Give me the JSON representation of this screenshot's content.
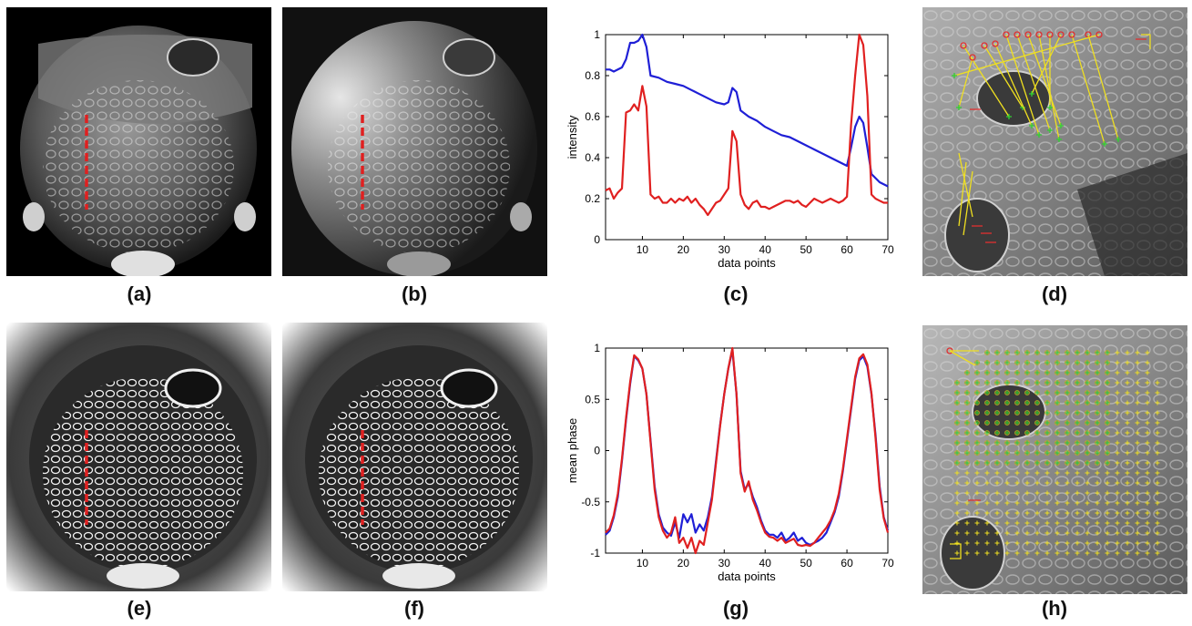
{
  "captions": {
    "a": "(a)",
    "b": "(b)",
    "c": "(c)",
    "d": "(d)",
    "e": "(e)",
    "f": "(f)",
    "g": "(g)",
    "h": "(h)"
  },
  "colors": {
    "series_blue": "#1f1fd6",
    "series_red": "#e02020",
    "marker_yellow": "#f0e020",
    "marker_green": "#30d030",
    "marker_red": "#e03030",
    "dashed_line": "#e02020"
  },
  "chart_data": [
    {
      "id": "c",
      "type": "line",
      "xlabel": "data points",
      "ylabel": "intensity",
      "xlim": [
        1,
        70
      ],
      "ylim": [
        0,
        1
      ],
      "x_ticks": [
        10,
        20,
        30,
        40,
        50,
        60,
        70
      ],
      "y_ticks": [
        0,
        0.2,
        0.4,
        0.6,
        0.8,
        1
      ],
      "y_tick_labels": [
        "0",
        "0.2",
        "0.4",
        "0.6",
        "0.8",
        "1"
      ],
      "series": [
        {
          "color": "blue",
          "x": [
            1,
            2,
            3,
            4,
            5,
            6,
            7,
            8,
            9,
            10,
            11,
            12,
            14,
            16,
            18,
            20,
            22,
            24,
            26,
            28,
            30,
            31,
            32,
            33,
            34,
            36,
            38,
            40,
            42,
            44,
            46,
            48,
            50,
            52,
            54,
            56,
            58,
            60,
            61,
            62,
            63,
            64,
            65,
            66,
            67,
            68,
            70
          ],
          "y": [
            0.83,
            0.83,
            0.82,
            0.83,
            0.84,
            0.88,
            0.96,
            0.96,
            0.97,
            1.0,
            0.94,
            0.8,
            0.79,
            0.77,
            0.76,
            0.75,
            0.73,
            0.71,
            0.69,
            0.67,
            0.66,
            0.67,
            0.74,
            0.72,
            0.63,
            0.6,
            0.58,
            0.55,
            0.53,
            0.51,
            0.5,
            0.48,
            0.46,
            0.44,
            0.42,
            0.4,
            0.38,
            0.36,
            0.45,
            0.55,
            0.6,
            0.57,
            0.45,
            0.32,
            0.3,
            0.28,
            0.26
          ]
        },
        {
          "color": "red",
          "x": [
            1,
            2,
            3,
            4,
            5,
            6,
            7,
            8,
            9,
            10,
            11,
            12,
            13,
            14,
            15,
            16,
            17,
            18,
            19,
            20,
            21,
            22,
            23,
            24,
            25,
            26,
            27,
            28,
            29,
            30,
            31,
            32,
            33,
            34,
            35,
            36,
            37,
            38,
            39,
            40,
            41,
            42,
            43,
            44,
            45,
            46,
            47,
            48,
            49,
            50,
            51,
            52,
            53,
            54,
            55,
            56,
            57,
            58,
            59,
            60,
            61,
            62,
            63,
            64,
            65,
            66,
            67,
            68,
            69,
            70
          ],
          "y": [
            0.24,
            0.25,
            0.2,
            0.23,
            0.25,
            0.62,
            0.63,
            0.66,
            0.63,
            0.75,
            0.65,
            0.22,
            0.2,
            0.21,
            0.18,
            0.18,
            0.2,
            0.18,
            0.2,
            0.19,
            0.21,
            0.18,
            0.2,
            0.17,
            0.15,
            0.12,
            0.15,
            0.18,
            0.19,
            0.22,
            0.25,
            0.53,
            0.48,
            0.22,
            0.17,
            0.15,
            0.18,
            0.19,
            0.16,
            0.16,
            0.15,
            0.16,
            0.17,
            0.18,
            0.19,
            0.19,
            0.18,
            0.19,
            0.17,
            0.16,
            0.18,
            0.2,
            0.19,
            0.18,
            0.19,
            0.2,
            0.19,
            0.18,
            0.19,
            0.21,
            0.56,
            0.8,
            1.0,
            0.95,
            0.7,
            0.22,
            0.2,
            0.19,
            0.18,
            0.18
          ]
        }
      ]
    },
    {
      "id": "g",
      "type": "line",
      "xlabel": "data points",
      "ylabel": "mean phase",
      "xlim": [
        1,
        70
      ],
      "ylim": [
        -1,
        1
      ],
      "x_ticks": [
        10,
        20,
        30,
        40,
        50,
        60,
        70
      ],
      "y_ticks": [
        -1,
        -0.5,
        0,
        0.5,
        1
      ],
      "y_tick_labels": [
        "-1",
        "-0.5",
        "0",
        "0.5",
        "1"
      ],
      "series": [
        {
          "color": "blue",
          "x": [
            1,
            2,
            3,
            4,
            5,
            6,
            7,
            8,
            9,
            10,
            11,
            12,
            13,
            14,
            15,
            16,
            17,
            18,
            19,
            20,
            21,
            22,
            23,
            24,
            25,
            26,
            27,
            28,
            29,
            30,
            31,
            32,
            33,
            34,
            35,
            36,
            37,
            38,
            39,
            40,
            41,
            42,
            43,
            44,
            45,
            46,
            47,
            48,
            49,
            50,
            51,
            52,
            53,
            54,
            55,
            56,
            57,
            58,
            59,
            60,
            61,
            62,
            63,
            64,
            65,
            66,
            67,
            68,
            69,
            70
          ],
          "y": [
            -0.82,
            -0.78,
            -0.65,
            -0.45,
            -0.1,
            0.3,
            0.65,
            0.92,
            0.88,
            0.8,
            0.55,
            0.1,
            -0.35,
            -0.62,
            -0.75,
            -0.8,
            -0.83,
            -0.7,
            -0.85,
            -0.62,
            -0.7,
            -0.62,
            -0.8,
            -0.72,
            -0.78,
            -0.65,
            -0.45,
            -0.1,
            0.25,
            0.55,
            0.8,
            0.98,
            0.55,
            -0.2,
            -0.38,
            -0.32,
            -0.45,
            -0.55,
            -0.68,
            -0.78,
            -0.82,
            -0.82,
            -0.85,
            -0.8,
            -0.88,
            -0.85,
            -0.8,
            -0.88,
            -0.85,
            -0.9,
            -0.92,
            -0.9,
            -0.88,
            -0.85,
            -0.8,
            -0.7,
            -0.6,
            -0.45,
            -0.2,
            0.1,
            0.4,
            0.7,
            0.88,
            0.92,
            0.82,
            0.55,
            0.15,
            -0.35,
            -0.65,
            -0.78
          ]
        },
        {
          "color": "red",
          "x": [
            1,
            2,
            3,
            4,
            5,
            6,
            7,
            8,
            9,
            10,
            11,
            12,
            13,
            14,
            15,
            16,
            17,
            18,
            19,
            20,
            21,
            22,
            23,
            24,
            25,
            26,
            27,
            28,
            29,
            30,
            31,
            32,
            33,
            34,
            35,
            36,
            37,
            38,
            39,
            40,
            41,
            42,
            43,
            44,
            45,
            46,
            47,
            48,
            49,
            50,
            51,
            52,
            53,
            54,
            55,
            56,
            57,
            58,
            59,
            60,
            61,
            62,
            63,
            64,
            65,
            66,
            67,
            68,
            69,
            70
          ],
          "y": [
            -0.8,
            -0.76,
            -0.63,
            -0.42,
            -0.08,
            0.32,
            0.67,
            0.93,
            0.89,
            0.8,
            0.55,
            0.08,
            -0.38,
            -0.65,
            -0.78,
            -0.85,
            -0.8,
            -0.65,
            -0.9,
            -0.85,
            -0.95,
            -0.85,
            -1.0,
            -0.88,
            -0.92,
            -0.7,
            -0.48,
            -0.12,
            0.24,
            0.55,
            0.8,
            1.0,
            0.55,
            -0.22,
            -0.4,
            -0.3,
            -0.48,
            -0.58,
            -0.7,
            -0.8,
            -0.84,
            -0.85,
            -0.88,
            -0.85,
            -0.9,
            -0.88,
            -0.86,
            -0.92,
            -0.93,
            -0.92,
            -0.93,
            -0.9,
            -0.85,
            -0.8,
            -0.75,
            -0.68,
            -0.58,
            -0.42,
            -0.18,
            0.12,
            0.42,
            0.72,
            0.9,
            0.94,
            0.84,
            0.56,
            0.12,
            -0.38,
            -0.66,
            -0.8
          ]
        }
      ]
    }
  ]
}
